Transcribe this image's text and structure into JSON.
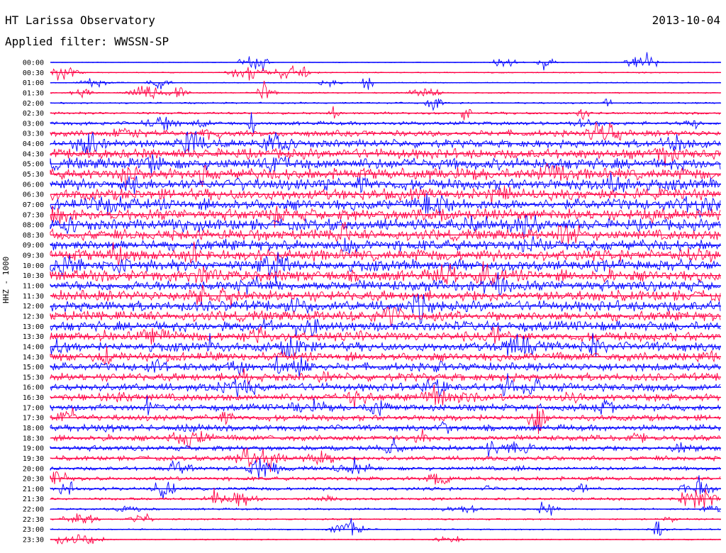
{
  "header": {
    "station": "HT Larissa Observatory",
    "date": "2013-10-04",
    "filter": "Applied filter: WWSSN-SP"
  },
  "channel_label": "HHZ - 1000",
  "colors": {
    "trace_a": "#0000ff",
    "trace_b": "#ff0044",
    "background": "#ffffff"
  },
  "chart_data": {
    "type": "line",
    "title": "HT Larissa Observatory",
    "subtitle": "Applied filter: WWSSN-SP",
    "ylabel": "HHZ - 1000",
    "rows": [
      "00:00",
      "00:30",
      "01:00",
      "01:30",
      "02:00",
      "02:30",
      "03:00",
      "03:30",
      "04:00",
      "04:30",
      "05:00",
      "05:30",
      "06:00",
      "06:30",
      "07:00",
      "07:30",
      "08:00",
      "08:30",
      "09:00",
      "09:30",
      "10:00",
      "10:30",
      "11:00",
      "11:30",
      "12:00",
      "12:30",
      "13:00",
      "13:30",
      "14:00",
      "14:30",
      "15:00",
      "15:30",
      "16:00",
      "16:30",
      "17:00",
      "17:30",
      "18:00",
      "18:30",
      "19:00",
      "19:30",
      "20:00",
      "20:30",
      "21:00",
      "21:30",
      "22:00",
      "22:30",
      "23:00",
      "23:30"
    ],
    "trace_colors_alternate": [
      "blue",
      "red"
    ],
    "relative_noise_level": [
      0.05,
      0.08,
      0.07,
      0.09,
      0.12,
      0.18,
      0.28,
      0.45,
      0.6,
      0.75,
      0.85,
      0.85,
      0.85,
      0.85,
      0.85,
      0.85,
      0.85,
      0.8,
      0.85,
      0.85,
      0.85,
      0.85,
      0.8,
      0.8,
      0.8,
      0.75,
      0.75,
      0.7,
      0.7,
      0.65,
      0.6,
      0.6,
      0.6,
      0.55,
      0.5,
      0.45,
      0.45,
      0.42,
      0.4,
      0.35,
      0.3,
      0.3,
      0.25,
      0.2,
      0.15,
      0.12,
      0.1,
      0.08
    ]
  }
}
